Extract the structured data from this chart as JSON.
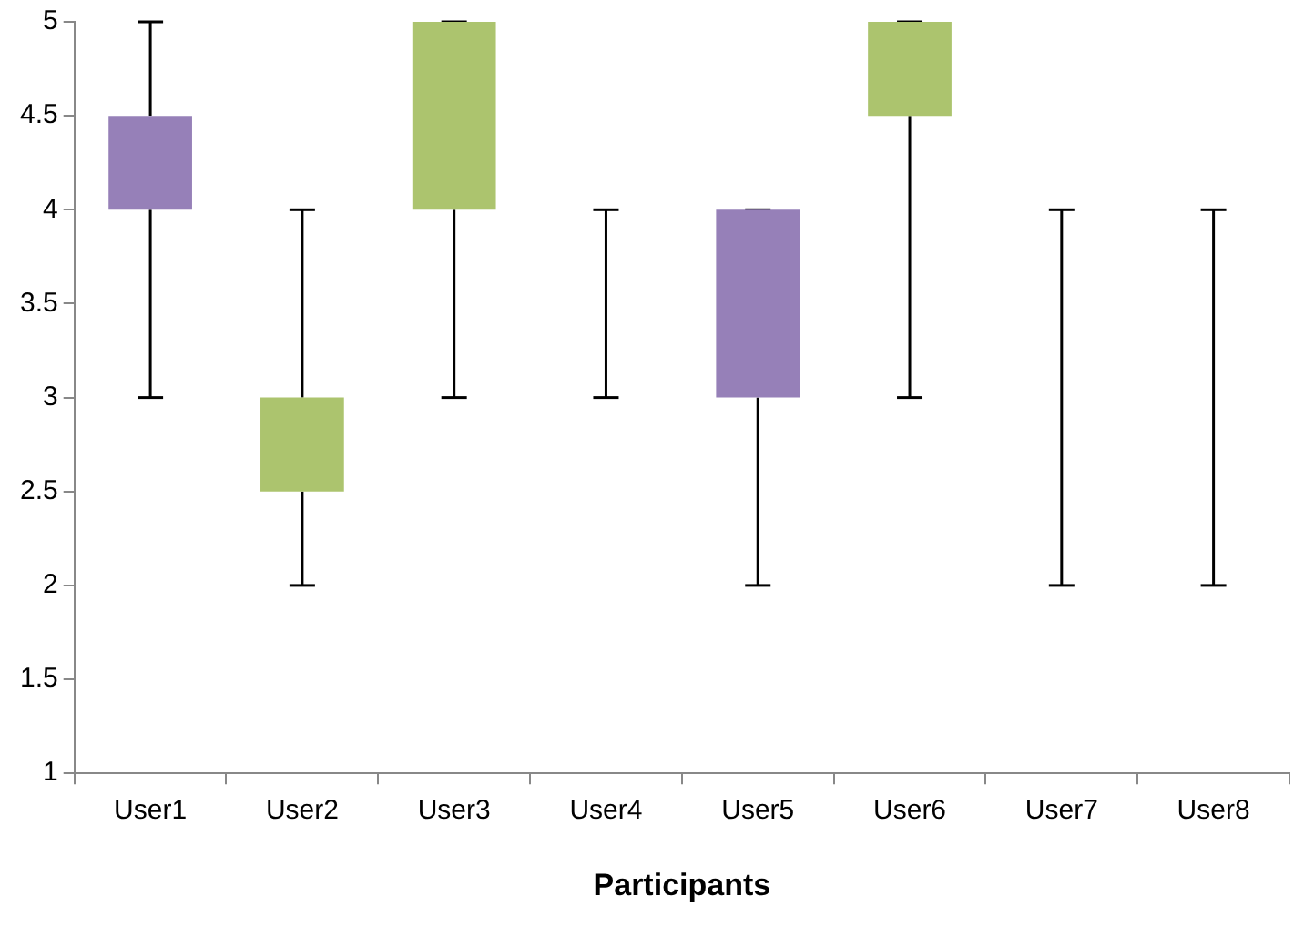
{
  "chart_data": {
    "type": "box",
    "xlabel": "Participants",
    "categories": [
      "User1",
      "User2",
      "User3",
      "User4",
      "User5",
      "User6",
      "User7",
      "User8"
    ],
    "boxes": [
      {
        "low": 3,
        "q1": 4,
        "median": 4.5,
        "q3": 4.5,
        "high": 5
      },
      {
        "low": 2,
        "q1": 2.5,
        "median": 2.5,
        "q3": 3,
        "high": 4
      },
      {
        "low": 3,
        "q1": 4,
        "median": 4,
        "q3": 5,
        "high": 5
      },
      {
        "low": 3,
        "q1": 4,
        "median": 4,
        "q3": 4,
        "high": 4
      },
      {
        "low": 2,
        "q1": 3,
        "median": 4,
        "q3": 4,
        "high": 4
      },
      {
        "low": 3,
        "q1": 4.5,
        "median": 4.5,
        "q3": 5,
        "high": 5
      },
      {
        "low": 2,
        "q1": 4,
        "median": 4,
        "q3": 4,
        "high": 4
      },
      {
        "low": 2,
        "q1": 4,
        "median": 4,
        "q3": 4,
        "high": 4
      }
    ],
    "colors": [
      "#9680b8",
      "#acc46e",
      "#acc46e",
      null,
      "#9680b8",
      "#acc46e",
      null,
      null
    ],
    "ylim": [
      1,
      5
    ],
    "yticks": [
      1,
      1.5,
      2,
      2.5,
      3,
      3.5,
      4,
      4.5,
      5
    ],
    "grid": false,
    "legend": false
  }
}
